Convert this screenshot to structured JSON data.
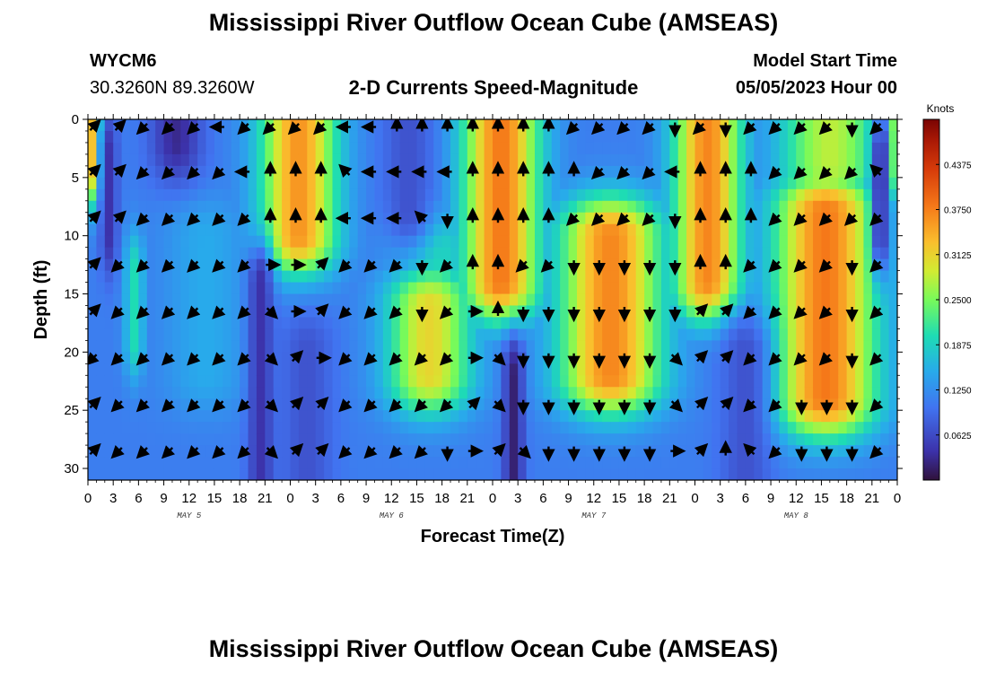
{
  "header": {
    "title": "Mississippi River Outflow Ocean Cube (AMSEAS)",
    "station_id": "WYCM6",
    "station_coords": "30.3260N  89.3260W",
    "subtitle": "2-D Currents Speed-Magnitude",
    "model_start_label": "Model Start Time",
    "model_start_value": "05/05/2023 Hour 00"
  },
  "footer": {
    "title": "Mississippi River Outflow Ocean Cube (AMSEAS)"
  },
  "chart_data": {
    "type": "heatmap",
    "title": "2-D Currents Speed-Magnitude",
    "xlabel": "Forecast Time(Z)",
    "ylabel": "Depth (ft)",
    "x_tick_labels": [
      "0",
      "3",
      "6",
      "9",
      "12",
      "15",
      "18",
      "21",
      "0",
      "3",
      "6",
      "9",
      "12",
      "15",
      "18",
      "21",
      "0",
      "3",
      "6",
      "9",
      "12",
      "15",
      "18",
      "21",
      "0",
      "3",
      "6",
      "9",
      "12",
      "15",
      "18",
      "21",
      "0"
    ],
    "date_labels": [
      {
        "label": "MAY 5",
        "hour": 12
      },
      {
        "label": "MAY 6",
        "hour": 36
      },
      {
        "label": "MAY 7",
        "hour": 60
      },
      {
        "label": "MAY 8",
        "hour": 84
      }
    ],
    "xlim_hours": [
      0,
      96
    ],
    "y_ticks": [
      0,
      5,
      10,
      15,
      20,
      25,
      30
    ],
    "ylim": [
      0,
      31
    ],
    "colorbar": {
      "unit": "Knots",
      "ticks": [
        0.0625,
        0.125,
        0.1875,
        0.25,
        0.3125,
        0.375,
        0.4375
      ],
      "tick_labels": [
        "0.0625",
        "0.1250",
        "0.1875",
        "0.2500",
        "0.3125",
        "0.3750",
        "0.4375"
      ],
      "range": [
        0,
        0.5
      ]
    },
    "background_speed": 0.11,
    "speed_features": [
      {
        "t": 25,
        "d0": -5,
        "d1": 10,
        "tw": 4.5,
        "v": 0.36
      },
      {
        "t": 49,
        "d0": -5,
        "d1": 14,
        "tw": 4.5,
        "v": 0.38
      },
      {
        "t": 73.5,
        "d0": -5,
        "d1": 14,
        "tw": 4,
        "v": 0.37
      },
      {
        "t": 88,
        "d0": -5,
        "d1": 4,
        "tw": 6,
        "v": 0.28
      },
      {
        "t": 62,
        "d0": 10,
        "d1": 22,
        "tw": 6,
        "v": 0.37
      },
      {
        "t": 87.5,
        "d0": 8,
        "d1": 24,
        "tw": 6,
        "v": 0.38
      },
      {
        "t": 40.5,
        "d0": 16,
        "d1": 22,
        "tw": 5,
        "v": 0.31
      },
      {
        "t": 41,
        "d0": 11,
        "d1": 16,
        "tw": 5,
        "v": 0.2
      },
      {
        "t": 5.5,
        "d0": 13,
        "d1": 19,
        "tw": 1.2,
        "v": 0.2
      },
      {
        "t": 14,
        "d0": 10,
        "d1": 22,
        "tw": 5,
        "v": 0.15
      },
      {
        "t": 0.5,
        "d0": -5,
        "d1": 4,
        "tw": 1,
        "v": 0.33
      },
      {
        "t": 95.5,
        "d0": -5,
        "d1": 4,
        "tw": 1,
        "v": 0.26
      }
    ],
    "low_features": [
      {
        "t": 10.5,
        "d0": -5,
        "d1": 2,
        "tw": 3,
        "v": 0.03
      },
      {
        "t": 2.5,
        "d0": 3,
        "d1": 10,
        "tw": 1,
        "v": 0.04
      },
      {
        "t": 20.5,
        "d0": 14,
        "d1": 31,
        "tw": 1.5,
        "v": 0.04
      },
      {
        "t": 50.5,
        "d0": 22,
        "d1": 31,
        "tw": 1.2,
        "v": 0.02
      },
      {
        "t": 94,
        "d0": 3,
        "d1": 10,
        "tw": 1,
        "v": 0.03
      },
      {
        "t": 26,
        "d0": 20,
        "d1": 31,
        "tw": 3,
        "v": 0.07
      },
      {
        "t": 38,
        "d0": 0,
        "d1": 8,
        "tw": 3,
        "v": 0.07
      },
      {
        "t": 78,
        "d0": 20,
        "d1": 31,
        "tw": 3,
        "v": 0.07
      }
    ],
    "vector_hours": [
      0,
      3,
      6,
      9,
      12,
      15,
      18,
      21,
      24,
      27,
      30,
      33,
      36,
      39,
      42,
      45,
      48,
      51,
      54,
      57,
      60,
      63,
      66,
      69,
      72,
      75,
      78,
      81,
      84,
      87,
      90,
      93
    ],
    "vector_depths": [
      0,
      4,
      8,
      12,
      16,
      20,
      24,
      28
    ],
    "vector_direction_rows": [
      "NE,NE,SW,SW,SW,W,SW,SW,SW,SW,W,W,N,N,N,N,N,N,N,SW,SW,SW,SW,S,SW,S,SW,SW,SW,SW,S,SW",
      "NE,NE,SW,SW,SW,SW,W,N,N,N,NW,W,W,W,W,N,N,N,N,N,SW,SW,SW,W,N,N,N,SW,SW,SW,SW,NW",
      "NE,NE,SW,SW,SW,SW,SW,N,N,N,W,W,W,NW,S,N,N,N,N,SW,SW,SW,SW,S,N,N,N,SW,SW,SW,SW,SW",
      "NE,SW,SW,SW,SW,SW,SW,E,E,NE,SW,SW,SW,S,SW,N,N,SW,SW,S,S,S,S,S,N,N,SW,SW,SW,SW,S,SW",
      "NE,SW,SW,SW,SW,SW,SW,SE,E,NE,SW,SW,SW,S,SW,E,N,S,S,S,S,S,S,S,NE,NE,SW,SW,SW,SW,S,SW",
      "SW,SW,SW,SW,SW,SW,SW,SE,NE,E,SW,SW,SW,SW,SW,E,SE,S,S,S,S,S,S,SE,NE,NE,SW,SW,SW,SW,S,SW",
      "NE,SW,SW,SW,SW,SW,SW,SE,NE,NE,SW,SW,SW,SW,SW,NE,SE,S,S,S,S,S,S,SE,NE,NE,SW,SW,S,S,S,SW",
      "NE,SW,SW,SW,SW,SW,SW,SE,NE,NE,SW,SW,SW,SW,S,E,NE,SE,S,S,S,S,S,E,NE,N,NW,SW,S,S,S,SW"
    ]
  }
}
